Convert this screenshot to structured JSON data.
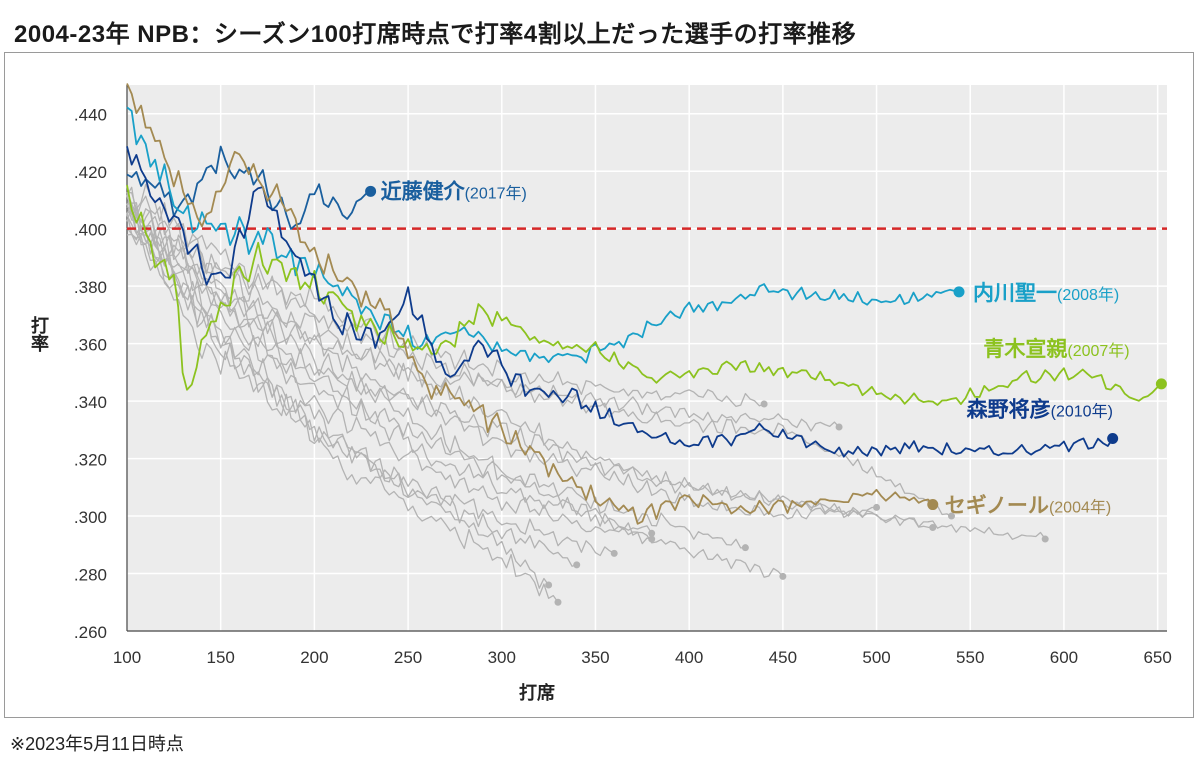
{
  "title": "2004-23年 NPB：シーズン100打席時点で打率4割以上だった選手の打率推移",
  "footnote": "※2023年5月11日時点",
  "chart_data": {
    "type": "line",
    "xlabel": "打席",
    "ylabel": "打率",
    "xlim": [
      100,
      655
    ],
    "ylim": [
      0.26,
      0.45
    ],
    "xticks": [
      100,
      150,
      200,
      250,
      300,
      350,
      400,
      450,
      500,
      550,
      600,
      650
    ],
    "yticks": [
      0.26,
      0.28,
      0.3,
      0.32,
      0.34,
      0.36,
      0.38,
      0.4,
      0.42,
      0.44
    ],
    "ytick_labels": [
      ".260",
      ".280",
      ".300",
      ".320",
      ".340",
      ".360",
      ".380",
      ".400",
      ".420",
      ".440"
    ],
    "reference_line": {
      "y": 0.4,
      "color": "#d62828"
    },
    "grid": true,
    "highlighted_series": [
      {
        "name": "近藤健介",
        "year": "(2017年)",
        "color": "#1a5f9e",
        "x": [
          100,
          130,
          150,
          170,
          190,
          200,
          210,
          220,
          230
        ],
        "y": [
          0.42,
          0.408,
          0.425,
          0.418,
          0.4,
          0.414,
          0.408,
          0.405,
          0.413
        ]
      },
      {
        "name": "内川聖一",
        "year": "(2008年)",
        "color": "#19a0c8",
        "x": [
          100,
          130,
          150,
          175,
          200,
          230,
          260,
          280,
          300,
          330,
          360,
          400,
          440,
          480,
          510,
          544
        ],
        "y": [
          0.44,
          0.405,
          0.4,
          0.395,
          0.385,
          0.37,
          0.36,
          0.365,
          0.358,
          0.355,
          0.36,
          0.372,
          0.378,
          0.376,
          0.375,
          0.378
        ]
      },
      {
        "name": "青木宣親",
        "year": "(2007年)",
        "color": "#8cc21f",
        "x": [
          100,
          125,
          132,
          150,
          170,
          200,
          230,
          260,
          290,
          320,
          350,
          380,
          420,
          460,
          500,
          540,
          580,
          610,
          640,
          652
        ],
        "y": [
          0.41,
          0.38,
          0.345,
          0.375,
          0.39,
          0.38,
          0.365,
          0.355,
          0.372,
          0.36,
          0.358,
          0.348,
          0.352,
          0.35,
          0.342,
          0.34,
          0.348,
          0.35,
          0.34,
          0.346
        ]
      },
      {
        "name": "森野将彦",
        "year": "(2010年)",
        "color": "#0e3b8c",
        "x": [
          100,
          130,
          150,
          170,
          190,
          210,
          230,
          250,
          270,
          290,
          310,
          340,
          370,
          400,
          440,
          480,
          520,
          560,
          600,
          626
        ],
        "y": [
          0.43,
          0.395,
          0.38,
          0.415,
          0.39,
          0.37,
          0.36,
          0.375,
          0.35,
          0.36,
          0.345,
          0.34,
          0.33,
          0.325,
          0.33,
          0.322,
          0.324,
          0.322,
          0.324,
          0.327
        ]
      },
      {
        "name": "セギノール",
        "year": "(2004年)",
        "color": "#a38a52",
        "x": [
          100,
          120,
          140,
          160,
          180,
          200,
          220,
          240,
          260,
          280,
          300,
          320,
          340,
          370,
          400,
          430,
          470,
          500,
          530
        ],
        "y": [
          0.45,
          0.425,
          0.4,
          0.425,
          0.41,
          0.39,
          0.38,
          0.37,
          0.345,
          0.34,
          0.33,
          0.32,
          0.31,
          0.3,
          0.305,
          0.302,
          0.305,
          0.308,
          0.304
        ]
      }
    ],
    "background_series": [
      {
        "x": [
          100,
          140,
          180,
          220,
          260,
          300,
          330
        ],
        "y": [
          0.405,
          0.36,
          0.34,
          0.315,
          0.3,
          0.285,
          0.27
        ]
      },
      {
        "x": [
          100,
          140,
          180,
          220,
          260,
          300,
          325
        ],
        "y": [
          0.41,
          0.37,
          0.345,
          0.325,
          0.305,
          0.29,
          0.276
        ]
      },
      {
        "x": [
          100,
          150,
          200,
          250,
          300,
          340,
          360
        ],
        "y": [
          0.4,
          0.36,
          0.33,
          0.31,
          0.3,
          0.29,
          0.287
        ]
      },
      {
        "x": [
          100,
          150,
          200,
          250,
          300,
          350,
          380
        ],
        "y": [
          0.404,
          0.375,
          0.35,
          0.325,
          0.31,
          0.3,
          0.294
        ]
      },
      {
        "x": [
          100,
          150,
          200,
          250,
          300,
          350,
          400,
          430
        ],
        "y": [
          0.408,
          0.38,
          0.355,
          0.335,
          0.315,
          0.305,
          0.295,
          0.289
        ]
      },
      {
        "x": [
          100,
          150,
          200,
          250,
          300,
          350,
          400,
          450
        ],
        "y": [
          0.402,
          0.365,
          0.345,
          0.33,
          0.315,
          0.3,
          0.288,
          0.279
        ]
      },
      {
        "x": [
          100,
          150,
          200,
          250,
          300,
          350,
          400,
          450,
          500
        ],
        "y": [
          0.412,
          0.385,
          0.36,
          0.34,
          0.325,
          0.315,
          0.305,
          0.3,
          0.303
        ]
      },
      {
        "x": [
          100,
          150,
          200,
          250,
          300,
          350,
          400,
          450,
          500,
          530
        ],
        "y": [
          0.406,
          0.38,
          0.365,
          0.35,
          0.335,
          0.32,
          0.31,
          0.305,
          0.3,
          0.296
        ]
      },
      {
        "x": [
          100,
          150,
          200,
          250,
          300,
          350,
          400,
          450,
          500,
          550,
          590
        ],
        "y": [
          0.401,
          0.37,
          0.35,
          0.34,
          0.33,
          0.318,
          0.31,
          0.305,
          0.3,
          0.295,
          0.292
        ]
      },
      {
        "x": [
          100,
          150,
          200,
          250,
          300,
          350,
          400,
          450,
          480
        ],
        "y": [
          0.415,
          0.39,
          0.37,
          0.355,
          0.345,
          0.34,
          0.335,
          0.333,
          0.331
        ]
      },
      {
        "x": [
          100,
          150,
          200,
          250,
          300,
          350,
          400,
          440
        ],
        "y": [
          0.409,
          0.385,
          0.375,
          0.36,
          0.35,
          0.345,
          0.342,
          0.339
        ]
      },
      {
        "x": [
          100,
          150,
          200,
          250,
          300,
          350,
          400,
          450,
          500,
          540
        ],
        "y": [
          0.403,
          0.375,
          0.36,
          0.35,
          0.345,
          0.338,
          0.332,
          0.33,
          0.315,
          0.3
        ]
      },
      {
        "x": [
          100,
          150,
          200,
          250,
          300,
          350,
          380
        ],
        "y": [
          0.411,
          0.375,
          0.34,
          0.32,
          0.305,
          0.296,
          0.292
        ]
      },
      {
        "x": [
          100,
          150,
          200,
          250,
          300,
          340
        ],
        "y": [
          0.407,
          0.36,
          0.33,
          0.31,
          0.295,
          0.283
        ]
      }
    ]
  }
}
